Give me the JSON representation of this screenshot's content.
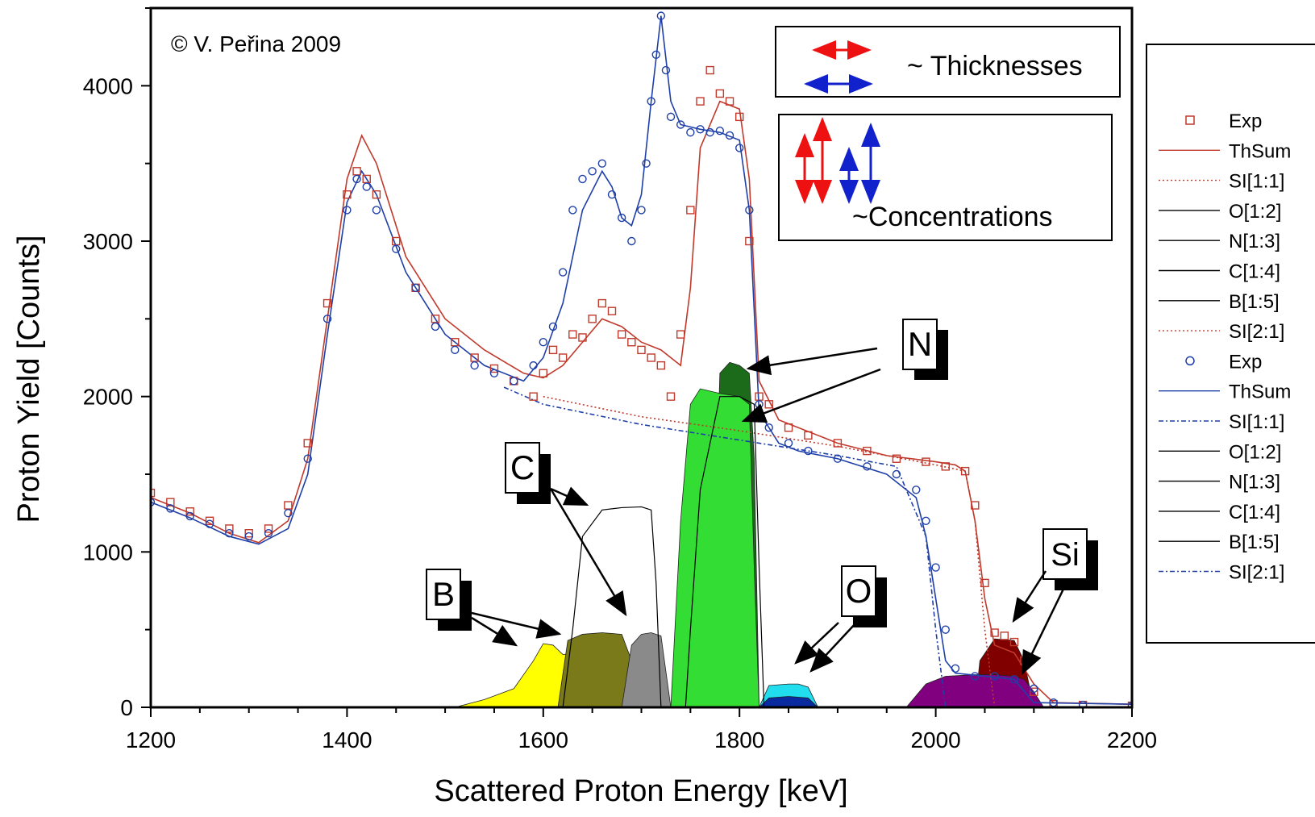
{
  "chart_data": {
    "type": "scatter",
    "title": "",
    "xlabel": "Scattered Proton Energy [keV]",
    "ylabel": "Proton Yield [Counts]",
    "xlim": [
      1200,
      2200
    ],
    "ylim": [
      0,
      4500
    ],
    "x_ticks": [
      1200,
      1400,
      1600,
      1800,
      2000,
      2200
    ],
    "y_ticks": [
      0,
      1000,
      2000,
      3000,
      4000
    ],
    "grid": false,
    "copyright": "© V. Peřina 2009",
    "annotations": {
      "thickness_label": "~ Thicknesses",
      "concentration_label": "~Concentrations",
      "element_labels": [
        "N",
        "C",
        "B",
        "O",
        "Si"
      ]
    },
    "legend": {
      "position": "right",
      "entries": [
        {
          "label": "Exp",
          "color": "#c0392b",
          "style": "square"
        },
        {
          "label": "ThSum",
          "color": "#c0392b",
          "style": "solid"
        },
        {
          "label": "SI[1:1]",
          "color": "#c0392b",
          "style": "dotted"
        },
        {
          "label": "O[1:2]",
          "color": "#000000",
          "style": "solid"
        },
        {
          "label": "N[1:3]",
          "color": "#000000",
          "style": "solid"
        },
        {
          "label": "C[1:4]",
          "color": "#000000",
          "style": "solid"
        },
        {
          "label": "B[1:5]",
          "color": "#000000",
          "style": "solid"
        },
        {
          "label": "SI[2:1]",
          "color": "#c0392b",
          "style": "dotted"
        },
        {
          "label": "Exp",
          "color": "#1f3fa8",
          "style": "circle"
        },
        {
          "label": "ThSum",
          "color": "#1f3fa8",
          "style": "solid"
        },
        {
          "label": "SI[1:1]",
          "color": "#1f3fa8",
          "style": "dashdot"
        },
        {
          "label": "O[1:2]",
          "color": "#000000",
          "style": "solid"
        },
        {
          "label": "N[1:3]",
          "color": "#000000",
          "style": "solid"
        },
        {
          "label": "C[1:4]",
          "color": "#000000",
          "style": "solid"
        },
        {
          "label": "B[1:5]",
          "color": "#000000",
          "style": "solid"
        },
        {
          "label": "SI[2:1]",
          "color": "#1f3fa8",
          "style": "dashdot"
        }
      ]
    },
    "series": [
      {
        "name": "ThSum",
        "color": "#c0392b",
        "kind": "line",
        "x": [
          1200,
          1240,
          1280,
          1310,
          1340,
          1360,
          1380,
          1400,
          1415,
          1430,
          1460,
          1500,
          1540,
          1580,
          1600,
          1620,
          1640,
          1660,
          1680,
          1700,
          1720,
          1740,
          1750,
          1760,
          1780,
          1800,
          1810,
          1820,
          1840,
          1860,
          1900,
          1950,
          2000,
          2020,
          2030,
          2040,
          2050,
          2060,
          2080,
          2100,
          2120,
          2200
        ],
        "y": [
          1350,
          1250,
          1120,
          1060,
          1200,
          1600,
          2500,
          3400,
          3680,
          3500,
          2900,
          2500,
          2300,
          2150,
          2120,
          2200,
          2350,
          2500,
          2450,
          2350,
          2300,
          2200,
          2700,
          3600,
          3900,
          3850,
          3400,
          2100,
          1850,
          1800,
          1700,
          1620,
          1580,
          1560,
          1520,
          1200,
          700,
          400,
          350,
          150,
          30,
          20
        ]
      },
      {
        "name": "ThSum",
        "color": "#1f3fa8",
        "kind": "line",
        "x": [
          1200,
          1240,
          1280,
          1310,
          1340,
          1360,
          1380,
          1400,
          1415,
          1430,
          1460,
          1500,
          1540,
          1580,
          1600,
          1620,
          1640,
          1660,
          1670,
          1680,
          1690,
          1700,
          1710,
          1720,
          1730,
          1740,
          1760,
          1780,
          1800,
          1810,
          1820,
          1840,
          1860,
          1900,
          1950,
          1980,
          1990,
          2000,
          2010,
          2020,
          2050,
          2080,
          2100,
          2200
        ],
        "y": [
          1320,
          1220,
          1100,
          1050,
          1150,
          1500,
          2400,
          3250,
          3450,
          3300,
          2800,
          2400,
          2200,
          2100,
          2250,
          2600,
          3200,
          3450,
          3350,
          3150,
          3100,
          3300,
          3900,
          4450,
          3900,
          3750,
          3720,
          3700,
          3650,
          3200,
          1900,
          1700,
          1650,
          1600,
          1500,
          1350,
          1100,
          700,
          300,
          220,
          200,
          180,
          30,
          20
        ]
      },
      {
        "name": "Exp",
        "color": "#c0392b",
        "kind": "square",
        "x": [
          1200,
          1220,
          1240,
          1260,
          1280,
          1300,
          1320,
          1340,
          1360,
          1380,
          1400,
          1410,
          1420,
          1430,
          1450,
          1470,
          1490,
          1510,
          1530,
          1550,
          1570,
          1590,
          1600,
          1610,
          1620,
          1630,
          1640,
          1650,
          1660,
          1670,
          1680,
          1690,
          1700,
          1710,
          1720,
          1730,
          1740,
          1750,
          1760,
          1770,
          1780,
          1790,
          1800,
          1810,
          1820,
          1830,
          1850,
          1870,
          1900,
          1930,
          1960,
          1990,
          2010,
          2030,
          2040,
          2050,
          2060,
          2070,
          2080,
          2090,
          2100,
          2120,
          2150,
          2200
        ],
        "y": [
          1380,
          1320,
          1260,
          1200,
          1150,
          1120,
          1150,
          1300,
          1700,
          2600,
          3300,
          3450,
          3400,
          3300,
          3000,
          2700,
          2500,
          2350,
          2250,
          2180,
          2100,
          2000,
          2150,
          2300,
          2250,
          2400,
          2380,
          2500,
          2600,
          2550,
          2400,
          2350,
          2300,
          2250,
          2200,
          2000,
          2400,
          3200,
          3900,
          4100,
          3950,
          3900,
          3800,
          3000,
          2000,
          1950,
          1800,
          1750,
          1700,
          1650,
          1600,
          1580,
          1550,
          1520,
          1300,
          800,
          480,
          460,
          420,
          300,
          100,
          20,
          15,
          10
        ]
      },
      {
        "name": "Exp",
        "color": "#1f3fa8",
        "kind": "circle",
        "x": [
          1200,
          1220,
          1240,
          1260,
          1280,
          1300,
          1320,
          1340,
          1360,
          1380,
          1400,
          1410,
          1420,
          1430,
          1450,
          1470,
          1490,
          1510,
          1530,
          1550,
          1570,
          1590,
          1600,
          1610,
          1620,
          1630,
          1640,
          1650,
          1660,
          1670,
          1680,
          1690,
          1700,
          1705,
          1710,
          1715,
          1720,
          1725,
          1730,
          1740,
          1750,
          1760,
          1770,
          1780,
          1790,
          1800,
          1810,
          1820,
          1830,
          1850,
          1870,
          1900,
          1930,
          1960,
          1980,
          1990,
          2000,
          2010,
          2020,
          2040,
          2060,
          2080,
          2100,
          2120,
          2150,
          2200
        ],
        "y": [
          1320,
          1280,
          1230,
          1180,
          1120,
          1100,
          1120,
          1250,
          1600,
          2500,
          3200,
          3400,
          3350,
          3200,
          2950,
          2700,
          2450,
          2300,
          2200,
          2150,
          2100,
          2200,
          2350,
          2450,
          2800,
          3200,
          3400,
          3450,
          3500,
          3300,
          3150,
          3000,
          3200,
          3500,
          3900,
          4200,
          4450,
          4100,
          3800,
          3750,
          3700,
          3720,
          3700,
          3710,
          3680,
          3600,
          3200,
          1950,
          1800,
          1700,
          1650,
          1600,
          1550,
          1500,
          1400,
          1200,
          900,
          500,
          250,
          200,
          200,
          180,
          120,
          30,
          15,
          10
        ]
      },
      {
        "name": "SI[1:1]",
        "color": "#c0392b",
        "kind": "dotted",
        "x": [
          1600,
          1700,
          1800,
          1900,
          2000,
          2030,
          2040,
          2050,
          2060
        ],
        "y": [
          2000,
          1870,
          1780,
          1680,
          1560,
          1520,
          1200,
          500,
          0
        ]
      },
      {
        "name": "SI[1:1]",
        "color": "#1f3fa8",
        "kind": "dashdot",
        "x": [
          1560,
          1600,
          1700,
          1800,
          1900,
          1960,
          1990,
          2000,
          2010
        ],
        "y": [
          2060,
          1950,
          1820,
          1720,
          1620,
          1550,
          1100,
          500,
          0
        ]
      },
      {
        "name": "C[1:4]",
        "color": "#000000",
        "kind": "thin",
        "x": [
          1620,
          1630,
          1640,
          1660,
          1680,
          1700,
          1710,
          1715,
          1720
        ],
        "y": [
          0,
          500,
          1100,
          1270,
          1285,
          1290,
          1270,
          800,
          0
        ]
      },
      {
        "name": "N[1:3]",
        "color": "#000000",
        "kind": "thin",
        "x": [
          1745,
          1750,
          1760,
          1780,
          1800,
          1815,
          1820,
          1825
        ],
        "y": [
          0,
          500,
          1400,
          2000,
          2000,
          1950,
          900,
          0
        ]
      }
    ],
    "filled_areas": [
      {
        "label": "B",
        "color": "#ffff00",
        "x": [
          1510,
          1540,
          1570,
          1590,
          1600,
          1610,
          1620,
          1640,
          1660,
          1680,
          1690,
          1700
        ],
        "y": [
          0,
          50,
          120,
          300,
          410,
          400,
          340,
          350,
          350,
          330,
          200,
          0
        ]
      },
      {
        "label": "C",
        "color": "#7a7a1a",
        "x": [
          1615,
          1625,
          1640,
          1660,
          1680,
          1690,
          1700
        ],
        "y": [
          0,
          430,
          470,
          480,
          470,
          300,
          0
        ]
      },
      {
        "label": "C",
        "color": "#8a8a8a",
        "x": [
          1680,
          1690,
          1700,
          1710,
          1720,
          1730
        ],
        "y": [
          0,
          400,
          470,
          480,
          460,
          0
        ]
      },
      {
        "label": "N",
        "color": "#1b6b1b",
        "x": [
          1770,
          1780,
          1790,
          1800,
          1810,
          1815,
          1820
        ],
        "y": [
          0,
          2150,
          2220,
          2200,
          2150,
          1600,
          0
        ]
      },
      {
        "label": "N",
        "color": "#33dd33",
        "x": [
          1730,
          1740,
          1750,
          1760,
          1780,
          1800,
          1810,
          1815,
          1820
        ],
        "y": [
          0,
          1200,
          1950,
          2050,
          2020,
          2000,
          1950,
          900,
          0
        ]
      },
      {
        "label": "O",
        "color": "#22ddee",
        "x": [
          1820,
          1830,
          1850,
          1860,
          1870,
          1880
        ],
        "y": [
          0,
          140,
          150,
          150,
          130,
          0
        ]
      },
      {
        "label": "O",
        "color": "#0a2aa0",
        "x": [
          1820,
          1830,
          1850,
          1870,
          1880
        ],
        "y": [
          0,
          60,
          70,
          60,
          0
        ]
      },
      {
        "label": "Si",
        "color": "#800000",
        "x": [
          2040,
          2045,
          2060,
          2080,
          2090,
          2100
        ],
        "y": [
          0,
          300,
          440,
          430,
          300,
          0
        ]
      },
      {
        "label": "Si",
        "color": "#800080",
        "x": [
          1970,
          1990,
          2010,
          2040,
          2060,
          2080,
          2090,
          2100,
          2110
        ],
        "y": [
          0,
          150,
          200,
          210,
          210,
          200,
          180,
          100,
          0
        ]
      }
    ]
  }
}
